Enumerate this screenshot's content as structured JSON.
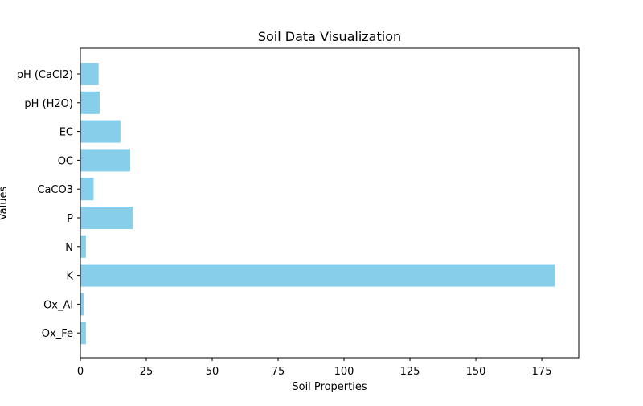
{
  "chart_data": {
    "type": "bar",
    "orientation": "horizontal",
    "title": "Soil Data Visualization",
    "xlabel": "Soil Properties",
    "ylabel": "Values",
    "categories": [
      "pH (CaCl2)",
      "pH (H2O)",
      "EC",
      "OC",
      "CaCO3",
      "P",
      "N",
      "K",
      "Ox_Al",
      "Ox_Fe"
    ],
    "values": [
      6.9,
      7.3,
      15.2,
      18.9,
      5.0,
      19.8,
      2.1,
      180.0,
      1.2,
      2.1
    ],
    "xlim": [
      0,
      189
    ],
    "xticks": [
      0,
      25,
      50,
      75,
      100,
      125,
      150,
      175
    ],
    "grid": false,
    "legend": "none",
    "bar_color": "#87ceeb"
  }
}
